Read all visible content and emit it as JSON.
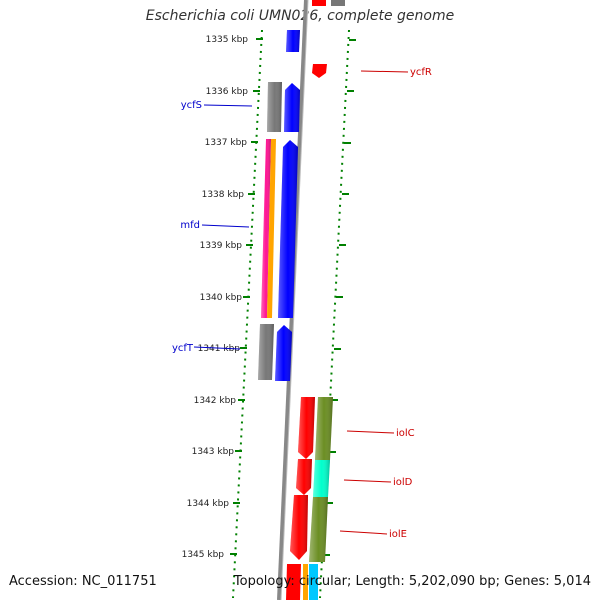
{
  "title": "Escherichia coli UMN026, complete genome",
  "footer": {
    "accession": "Accession: NC_011751",
    "topology": "Topology: circular; Length: 5,202,090 bp; Genes: 5,014"
  },
  "scale": {
    "ticks": [
      "1335 kbp",
      "1336 kbp",
      "1337 kbp",
      "1338 kbp",
      "1339 kbp",
      "1340 kbp",
      "1341 kbp",
      "1342 kbp",
      "1343 kbp",
      "1344 kbp",
      "1345 kbp"
    ]
  },
  "colors": {
    "minus_strand_gene": "#0000ff",
    "plus_strand_gene": "#ff0000",
    "backbone": "#888888",
    "cog_grey": "#777777",
    "cog_pink": "#ff1493",
    "cog_orange": "#ffa500",
    "cog_olive": "#6b8e23",
    "cog_cyan": "#00ffcc",
    "minus_label": "#0000cc",
    "plus_label": "#cc0000",
    "dots": "#008000"
  },
  "genes_minus": [
    {
      "label": "ycfS"
    },
    {
      "label": "mfd"
    },
    {
      "label": "ycfT"
    }
  ],
  "genes_plus": [
    {
      "label": "ycfR"
    },
    {
      "label": "iolC"
    },
    {
      "label": "iolD"
    },
    {
      "label": "iolE"
    }
  ]
}
